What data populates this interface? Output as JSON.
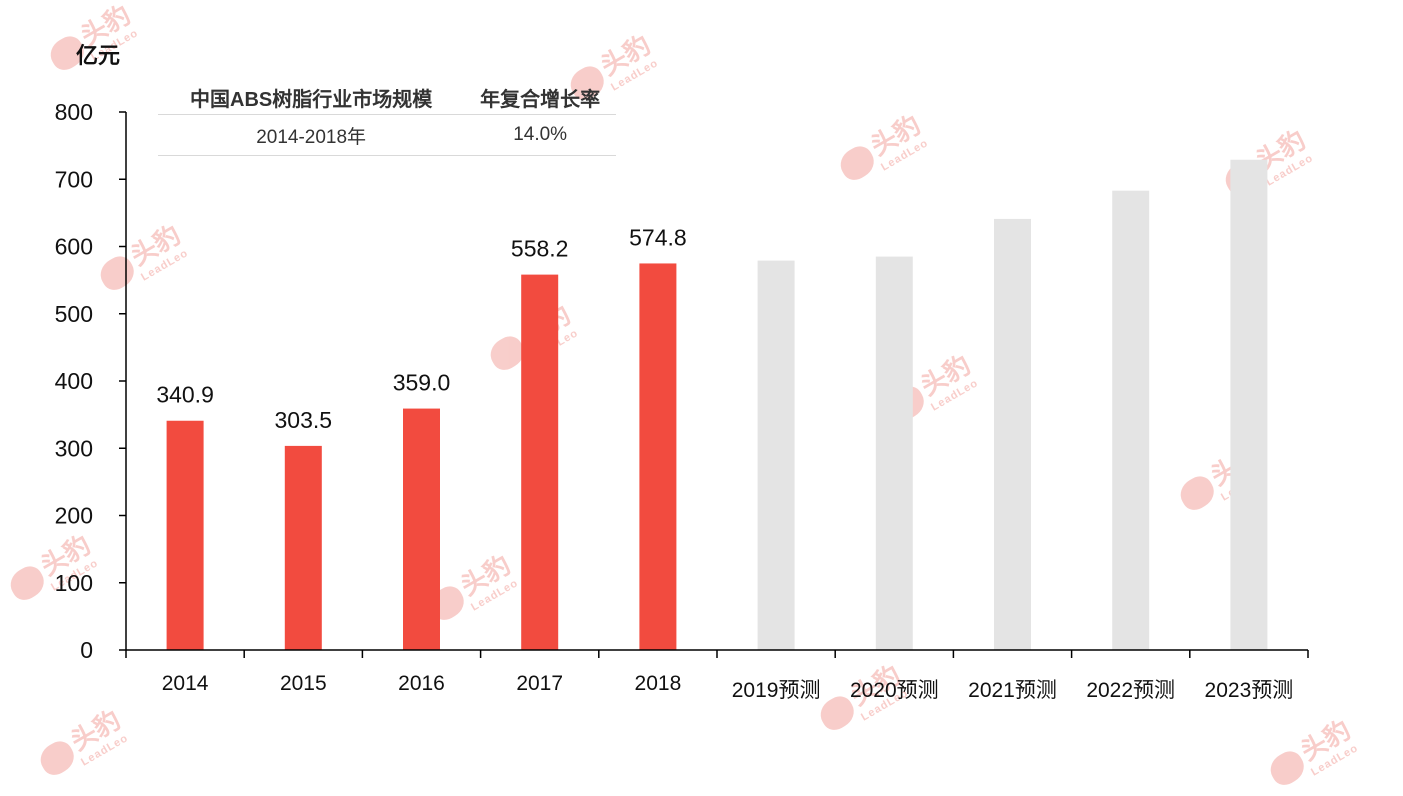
{
  "unit_label": "亿元",
  "table": {
    "headers": [
      "中国ABS树脂行业市场规模",
      "年复合增长率"
    ],
    "rows": [
      [
        "2014-2018年",
        "14.0%"
      ]
    ]
  },
  "watermark": {
    "cn": "头豹",
    "en": "LeadLeo"
  },
  "colors": {
    "actual": "#f24b3f",
    "forecast": "#e4e4e4",
    "axis": "#000000"
  },
  "chart_data": {
    "type": "bar",
    "categories": [
      "2014",
      "2015",
      "2016",
      "2017",
      "2018",
      "2019预测",
      "2020预测",
      "2021预测",
      "2022预测",
      "2023预测"
    ],
    "series": [
      {
        "values": [
          340.9,
          303.5,
          359.0,
          558.2,
          574.8,
          579,
          585,
          641,
          683,
          729
        ]
      }
    ],
    "data_labels": [
      "340.9",
      "303.5",
      "359.0",
      "558.2",
      "574.8",
      "",
      "",
      "",
      "",
      ""
    ],
    "forecast_flags": [
      false,
      false,
      false,
      false,
      false,
      true,
      true,
      true,
      true,
      true
    ],
    "y_ticks": [
      0,
      100,
      200,
      300,
      400,
      500,
      600,
      700,
      800
    ],
    "ylim": [
      0,
      800
    ],
    "ylabel": "亿元",
    "xlabel": "",
    "grid": false
  }
}
